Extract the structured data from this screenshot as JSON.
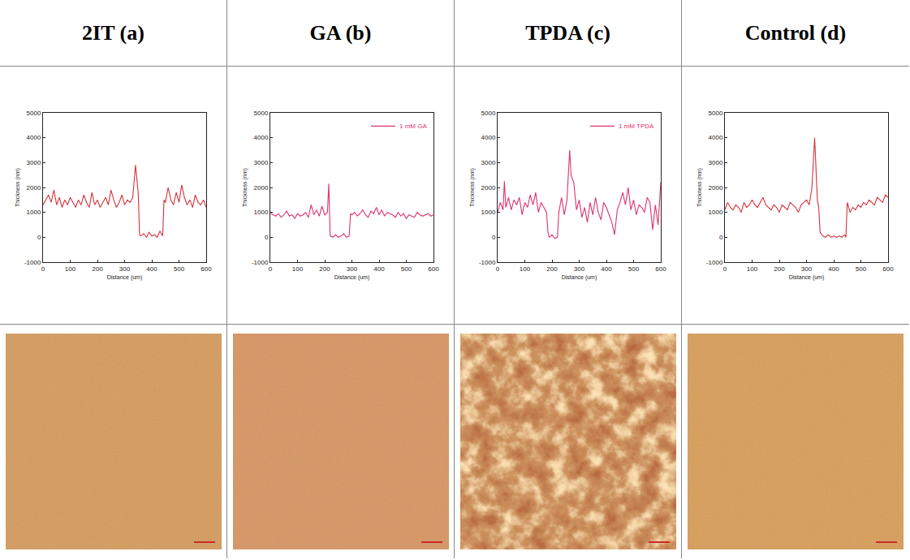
{
  "columns": [
    "2IT (a)",
    "GA (b)",
    "TPDA (c)",
    "Control (d)"
  ],
  "chart_data": [
    {
      "type": "line",
      "xlabel": "Distance (um)",
      "ylabel": "Thickness (nm)",
      "xlim": [
        0,
        600
      ],
      "ylim": [
        -1000,
        5000
      ],
      "xticks": [
        0,
        100,
        200,
        300,
        400,
        500,
        600
      ],
      "yticks": [
        -1000,
        0,
        1000,
        2000,
        3000,
        4000,
        5000
      ],
      "grid": false,
      "x": [
        0,
        10,
        20,
        30,
        40,
        50,
        60,
        70,
        80,
        90,
        100,
        110,
        120,
        130,
        140,
        150,
        160,
        170,
        180,
        190,
        200,
        210,
        220,
        230,
        240,
        250,
        260,
        270,
        280,
        290,
        300,
        310,
        320,
        330,
        340,
        350,
        355,
        360,
        370,
        380,
        390,
        400,
        410,
        420,
        430,
        440,
        445,
        450,
        460,
        470,
        480,
        490,
        500,
        510,
        520,
        530,
        540,
        550,
        560,
        570,
        580,
        590,
        600
      ],
      "series": [
        {
          "color": "#d8323c",
          "values": [
            1300,
            1500,
            1700,
            1400,
            1900,
            1300,
            1600,
            1200,
            1500,
            1300,
            1600,
            1400,
            1200,
            1500,
            1300,
            1700,
            1400,
            1200,
            1800,
            1300,
            1500,
            1200,
            1400,
            1600,
            1300,
            1900,
            1500,
            1200,
            1400,
            1700,
            1300,
            1500,
            1400,
            1600,
            2900,
            1800,
            100,
            50,
            150,
            0,
            200,
            50,
            100,
            0,
            250,
            50,
            1500,
            1400,
            2000,
            1500,
            1300,
            1800,
            1400,
            2100,
            1600,
            1300,
            1500,
            1200,
            1700,
            1400,
            1300,
            1500,
            1200
          ]
        }
      ]
    },
    {
      "type": "line",
      "xlabel": "Distance (um)",
      "ylabel": "Thickness (nm)",
      "xlim": [
        0,
        600
      ],
      "ylim": [
        -1000,
        5000
      ],
      "xticks": [
        0,
        100,
        200,
        300,
        400,
        500,
        600
      ],
      "yticks": [
        -1000,
        0,
        1000,
        2000,
        3000,
        4000,
        5000
      ],
      "grid": false,
      "legend": "upper right",
      "x": [
        0,
        10,
        20,
        30,
        40,
        50,
        60,
        70,
        80,
        90,
        100,
        110,
        120,
        130,
        140,
        150,
        160,
        170,
        180,
        190,
        200,
        210,
        215,
        220,
        230,
        240,
        250,
        260,
        270,
        280,
        290,
        295,
        300,
        310,
        320,
        330,
        340,
        350,
        360,
        370,
        380,
        390,
        400,
        410,
        420,
        430,
        440,
        450,
        460,
        470,
        480,
        490,
        500,
        510,
        520,
        530,
        540,
        550,
        560,
        570,
        580,
        590,
        600
      ],
      "series": [
        {
          "name": "1 mM GA",
          "color": "#e0336a",
          "values": [
            1000,
            900,
            850,
            950,
            800,
            900,
            1050,
            850,
            900,
            750,
            950,
            850,
            900,
            1000,
            800,
            1300,
            900,
            1100,
            850,
            1250,
            900,
            1000,
            2150,
            50,
            0,
            100,
            0,
            50,
            150,
            0,
            50,
            950,
            900,
            1000,
            850,
            950,
            1100,
            900,
            800,
            1050,
            950,
            1200,
            900,
            1100,
            850,
            1000,
            950,
            900,
            800,
            1000,
            850,
            950,
            750,
            900,
            850,
            800,
            1000,
            900,
            850,
            900,
            950,
            850,
            900
          ]
        }
      ]
    },
    {
      "type": "line",
      "xlabel": "Distance (um)",
      "ylabel": "Thickness (nm)",
      "xlim": [
        0,
        600
      ],
      "ylim": [
        -1000,
        5000
      ],
      "xticks": [
        0,
        100,
        200,
        300,
        400,
        500,
        600
      ],
      "yticks": [
        -1000,
        0,
        1000,
        2000,
        3000,
        4000,
        5000
      ],
      "grid": false,
      "legend": "upper right",
      "x": [
        0,
        10,
        20,
        25,
        30,
        40,
        50,
        60,
        70,
        80,
        90,
        100,
        110,
        120,
        130,
        140,
        150,
        160,
        170,
        180,
        185,
        190,
        200,
        210,
        220,
        225,
        235,
        245,
        255,
        265,
        270,
        280,
        290,
        300,
        310,
        320,
        330,
        340,
        350,
        360,
        370,
        380,
        390,
        400,
        410,
        420,
        430,
        440,
        450,
        460,
        470,
        480,
        490,
        500,
        510,
        520,
        530,
        540,
        550,
        560,
        570,
        580,
        590,
        600
      ],
      "series": [
        {
          "name": "1 mM TPDA",
          "color": "#e0336a",
          "values": [
            1000,
            1400,
            1100,
            2250,
            1200,
            1600,
            1100,
            1500,
            1300,
            1600,
            900,
            1400,
            1200,
            1700,
            1300,
            1800,
            1000,
            1400,
            1200,
            1000,
            200,
            0,
            100,
            -50,
            0,
            1000,
            1600,
            900,
            1500,
            3500,
            2500,
            2200,
            1100,
            1500,
            800,
            1200,
            600,
            1400,
            900,
            1600,
            1000,
            700,
            1400,
            1200,
            900,
            600,
            100,
            1100,
            1400,
            1800,
            1300,
            2000,
            1100,
            1500,
            900,
            1300,
            1200,
            1000,
            1600,
            1400,
            300,
            1300,
            500,
            2200
          ]
        }
      ]
    },
    {
      "type": "line",
      "xlabel": "Distance (um)",
      "ylabel": "Thickness (nm)",
      "xlim": [
        0,
        600
      ],
      "ylim": [
        -1000,
        5000
      ],
      "xticks": [
        0,
        100,
        200,
        300,
        400,
        500,
        600
      ],
      "yticks": [
        -1000,
        0,
        1000,
        2000,
        3000,
        4000,
        5000
      ],
      "grid": false,
      "x": [
        0,
        10,
        20,
        30,
        40,
        50,
        60,
        70,
        80,
        90,
        100,
        110,
        120,
        130,
        140,
        150,
        160,
        170,
        180,
        190,
        200,
        210,
        220,
        230,
        240,
        250,
        260,
        270,
        280,
        290,
        300,
        310,
        320,
        330,
        335,
        340,
        345,
        350,
        360,
        370,
        380,
        390,
        400,
        410,
        420,
        430,
        440,
        445,
        450,
        460,
        470,
        480,
        490,
        500,
        510,
        520,
        530,
        540,
        550,
        560,
        570,
        580,
        590,
        600
      ],
      "series": [
        {
          "color": "#d8323c",
          "values": [
            1100,
            1400,
            1200,
            1100,
            1300,
            1200,
            1000,
            1400,
            1200,
            1300,
            1500,
            1300,
            1200,
            1400,
            1600,
            1300,
            1200,
            1100,
            1300,
            1200,
            1000,
            1300,
            1200,
            1100,
            1400,
            1300,
            1200,
            1000,
            1300,
            1400,
            1500,
            1300,
            2000,
            4000,
            2500,
            1500,
            1200,
            200,
            50,
            0,
            100,
            0,
            50,
            0,
            50,
            0,
            100,
            0,
            1400,
            1000,
            1200,
            1100,
            1300,
            1200,
            1400,
            1300,
            1500,
            1400,
            1300,
            1600,
            1500,
            1400,
            1700,
            1600
          ]
        }
      ]
    }
  ]
}
